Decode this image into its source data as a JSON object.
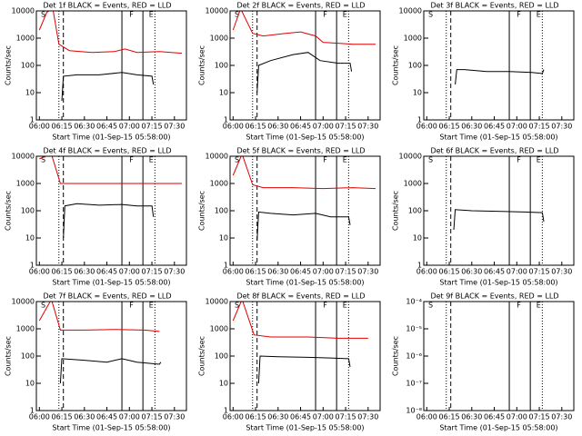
{
  "chart_data": [
    {
      "type": "line",
      "title": "Det 1f BLACK = Events, RED = LLD",
      "ylabel": "Counts/sec",
      "xlabel": "Start Time (01-Sep-15 05:58:00)",
      "log_y": true,
      "xlim": [
        "05:58",
        "07:38"
      ],
      "xticks": [
        "06:00",
        "06:15",
        "06:30",
        "06:45",
        "07:00",
        "07:15",
        "07:30"
      ],
      "ylim": [
        1,
        10000
      ],
      "yticks": [
        1,
        10,
        100,
        1000,
        10000
      ],
      "events": [
        {
          "label": "S",
          "x": "06:01"
        },
        {
          "label": "F",
          "x": "07:00"
        },
        {
          "label": "E",
          "x": "07:13"
        }
      ],
      "lines": [
        {
          "x": "06:13",
          "style": "dotted"
        },
        {
          "x": "06:16",
          "style": "dashed"
        },
        {
          "x": "06:55",
          "style": "solid"
        },
        {
          "x": "07:09",
          "style": "solid"
        },
        {
          "x": "07:17",
          "style": "dotted"
        }
      ],
      "series": [
        {
          "color": "#e00000",
          "x": [
            "06:00",
            "06:05",
            "06:09",
            "06:13",
            "06:20",
            "06:35",
            "06:50",
            "06:57",
            "07:05",
            "07:20",
            "07:35"
          ],
          "values": [
            2000,
            9000,
            12000,
            600,
            350,
            300,
            320,
            400,
            300,
            320,
            280
          ]
        },
        {
          "color": "#000000",
          "x": [
            "06:15",
            "06:16",
            "06:25",
            "06:40",
            "06:55",
            "07:05",
            "07:15",
            "07:16"
          ],
          "values": [
            5,
            40,
            45,
            45,
            55,
            45,
            40,
            20
          ]
        }
      ]
    },
    {
      "type": "line",
      "title": "Det 2f BLACK = Events, RED = LLD",
      "ylabel": "Counts/sec",
      "xlabel": "Start Time (01-Sep-15 05:58:00)",
      "log_y": true,
      "xlim": [
        "05:58",
        "07:38"
      ],
      "xticks": [
        "06:00",
        "06:15",
        "06:30",
        "06:45",
        "07:00",
        "07:15",
        "07:30"
      ],
      "ylim": [
        1,
        10000
      ],
      "yticks": [
        1,
        10,
        100,
        1000,
        10000
      ],
      "events": [
        {
          "label": "S",
          "x": "06:01"
        },
        {
          "label": "F",
          "x": "07:00"
        },
        {
          "label": "E",
          "x": "07:13"
        }
      ],
      "lines": [
        {
          "x": "06:13",
          "style": "dotted"
        },
        {
          "x": "06:16",
          "style": "dashed"
        },
        {
          "x": "06:55",
          "style": "solid"
        },
        {
          "x": "07:09",
          "style": "solid"
        },
        {
          "x": "07:17",
          "style": "dotted"
        }
      ],
      "series": [
        {
          "color": "#e00000",
          "x": [
            "06:00",
            "06:05",
            "06:13",
            "06:20",
            "06:35",
            "06:45",
            "06:55",
            "07:00",
            "07:20",
            "07:35"
          ],
          "values": [
            2000,
            12000,
            1500,
            1200,
            1500,
            1700,
            1200,
            700,
            600,
            600
          ]
        },
        {
          "color": "#000000",
          "x": [
            "06:16",
            "06:17",
            "06:25",
            "06:40",
            "06:50",
            "06:58",
            "07:10",
            "07:18",
            "07:19"
          ],
          "values": [
            10,
            100,
            150,
            250,
            300,
            150,
            120,
            120,
            60
          ]
        }
      ]
    },
    {
      "type": "line",
      "title": "Det 3f BLACK = Events, RED = LLD",
      "ylabel": "Counts/sec",
      "xlabel": "Start Time (01-Sep-15 05:58:00)",
      "log_y": true,
      "xlim": [
        "05:58",
        "07:38"
      ],
      "xticks": [
        "06:00",
        "06:15",
        "06:30",
        "06:45",
        "07:00",
        "07:15",
        "07:30"
      ],
      "ylim": [
        1,
        10000
      ],
      "yticks": [
        1,
        10,
        100,
        1000,
        10000
      ],
      "events": [
        {
          "label": "S",
          "x": "06:01"
        },
        {
          "label": "F",
          "x": "07:00"
        },
        {
          "label": "E",
          "x": "07:13"
        }
      ],
      "lines": [
        {
          "x": "06:13",
          "style": "dotted"
        },
        {
          "x": "06:16",
          "style": "dashed"
        },
        {
          "x": "06:55",
          "style": "solid"
        },
        {
          "x": "07:09",
          "style": "solid"
        },
        {
          "x": "07:17",
          "style": "dotted"
        }
      ],
      "series": [
        {
          "color": "#000000",
          "x": [
            "06:19",
            "06:20",
            "06:25",
            "06:40",
            "06:55",
            "07:10",
            "07:17",
            "07:18"
          ],
          "values": [
            20,
            70,
            70,
            60,
            60,
            55,
            50,
            70
          ]
        }
      ]
    },
    {
      "type": "line",
      "title": "Det 4f BLACK = Events, RED = LLD",
      "ylabel": "Counts/sec",
      "xlabel": "Start Time (01-Sep-15 05:58:00)",
      "log_y": true,
      "xlim": [
        "05:58",
        "07:38"
      ],
      "xticks": [
        "06:00",
        "06:15",
        "06:30",
        "06:45",
        "07:00",
        "07:15",
        "07:30"
      ],
      "ylim": [
        1,
        10000
      ],
      "yticks": [
        1,
        10,
        100,
        1000,
        10000
      ],
      "events": [
        {
          "label": "S",
          "x": "06:01"
        },
        {
          "label": "F",
          "x": "07:00"
        },
        {
          "label": "E",
          "x": "07:13"
        }
      ],
      "lines": [
        {
          "x": "06:13",
          "style": "dotted"
        },
        {
          "x": "06:16",
          "style": "dashed"
        },
        {
          "x": "06:55",
          "style": "solid"
        },
        {
          "x": "07:09",
          "style": "solid"
        },
        {
          "x": "07:17",
          "style": "dotted"
        }
      ],
      "series": [
        {
          "color": "#e00000",
          "x": [
            "06:00",
            "06:08",
            "06:14",
            "06:20",
            "07:35"
          ],
          "values": [
            8000,
            12000,
            1000,
            1000,
            1000
          ]
        },
        {
          "color": "#000000",
          "x": [
            "06:16",
            "06:17",
            "06:25",
            "06:40",
            "06:55",
            "07:05",
            "07:15",
            "07:16"
          ],
          "values": [
            10,
            150,
            180,
            160,
            170,
            150,
            150,
            60
          ]
        }
      ]
    },
    {
      "type": "line",
      "title": "Det 5f BLACK = Events, RED = LLD",
      "ylabel": "Counts/sec",
      "xlabel": "Start Time (01-Sep-15 05:58:00)",
      "log_y": true,
      "xlim": [
        "05:58",
        "07:38"
      ],
      "xticks": [
        "06:00",
        "06:15",
        "06:30",
        "06:45",
        "07:00",
        "07:15",
        "07:30"
      ],
      "ylim": [
        1,
        10000
      ],
      "yticks": [
        1,
        10,
        100,
        1000,
        10000
      ],
      "events": [
        {
          "label": "S",
          "x": "06:01"
        },
        {
          "label": "F",
          "x": "07:00"
        },
        {
          "label": "E",
          "x": "07:13"
        }
      ],
      "lines": [
        {
          "x": "06:13",
          "style": "dotted"
        },
        {
          "x": "06:16",
          "style": "dashed"
        },
        {
          "x": "06:55",
          "style": "solid"
        },
        {
          "x": "07:09",
          "style": "solid"
        },
        {
          "x": "07:17",
          "style": "dotted"
        }
      ],
      "series": [
        {
          "color": "#e00000",
          "x": [
            "06:00",
            "06:06",
            "06:13",
            "06:20",
            "06:40",
            "07:00",
            "07:20",
            "07:35"
          ],
          "values": [
            2000,
            12000,
            900,
            700,
            700,
            650,
            700,
            650
          ]
        },
        {
          "color": "#000000",
          "x": [
            "06:16",
            "06:17",
            "06:25",
            "06:40",
            "06:55",
            "07:05",
            "07:17",
            "07:18"
          ],
          "values": [
            8,
            90,
            80,
            70,
            80,
            60,
            60,
            30
          ]
        }
      ]
    },
    {
      "type": "line",
      "title": "Det 6f BLACK = Events, RED = LLD",
      "ylabel": "Counts/sec",
      "xlabel": "Start Time (01-Sep-15 05:58:00)",
      "log_y": true,
      "xlim": [
        "05:58",
        "07:38"
      ],
      "xticks": [
        "06:00",
        "06:15",
        "06:30",
        "06:45",
        "07:00",
        "07:15",
        "07:30"
      ],
      "ylim": [
        1,
        10000
      ],
      "yticks": [
        1,
        10,
        100,
        1000,
        10000
      ],
      "events": [
        {
          "label": "S",
          "x": "06:01"
        },
        {
          "label": "F",
          "x": "07:00"
        },
        {
          "label": "E",
          "x": "07:13"
        }
      ],
      "lines": [
        {
          "x": "06:13",
          "style": "dotted"
        },
        {
          "x": "06:16",
          "style": "dashed"
        },
        {
          "x": "06:55",
          "style": "solid"
        },
        {
          "x": "07:09",
          "style": "solid"
        },
        {
          "x": "07:17",
          "style": "dotted"
        }
      ],
      "series": [
        {
          "color": "#000000",
          "x": [
            "06:18",
            "06:19",
            "06:30",
            "06:50",
            "07:05",
            "07:17",
            "07:18"
          ],
          "values": [
            20,
            110,
            100,
            95,
            90,
            85,
            40
          ]
        }
      ]
    },
    {
      "type": "line",
      "title": "Det 7f BLACK = Events, RED = LLD",
      "ylabel": "Counts/sec",
      "xlabel": "Start Time (01-Sep-15 05:58:00)",
      "log_y": true,
      "xlim": [
        "05:58",
        "07:38"
      ],
      "xticks": [
        "06:00",
        "06:15",
        "06:30",
        "06:45",
        "07:00",
        "07:15",
        "07:30"
      ],
      "ylim": [
        1,
        10000
      ],
      "yticks": [
        1,
        10,
        100,
        1000,
        10000
      ],
      "events": [
        {
          "label": "S",
          "x": "06:01"
        },
        {
          "label": "F",
          "x": "07:00"
        },
        {
          "label": "E",
          "x": "07:13"
        }
      ],
      "lines": [
        {
          "x": "06:13",
          "style": "dotted"
        },
        {
          "x": "06:16",
          "style": "dashed"
        },
        {
          "x": "06:55",
          "style": "solid"
        },
        {
          "x": "07:09",
          "style": "solid"
        },
        {
          "x": "07:17",
          "style": "dotted"
        }
      ],
      "series": [
        {
          "color": "#e00000",
          "x": [
            "06:00",
            "06:08",
            "06:14",
            "06:30",
            "06:50",
            "07:10",
            "07:20"
          ],
          "values": [
            2000,
            12000,
            900,
            900,
            950,
            900,
            800
          ]
        },
        {
          "color": "#000000",
          "x": [
            "06:14",
            "06:15",
            "06:30",
            "06:45",
            "06:55",
            "07:05",
            "07:20",
            "07:21"
          ],
          "values": [
            10,
            80,
            70,
            60,
            80,
            60,
            50,
            60
          ]
        }
      ]
    },
    {
      "type": "line",
      "title": "Det 8f BLACK = Events, RED = LLD",
      "ylabel": "Counts/sec",
      "xlabel": "Start Time (01-Sep-15 05:58:00)",
      "log_y": true,
      "xlim": [
        "05:58",
        "07:38"
      ],
      "xticks": [
        "06:00",
        "06:15",
        "06:30",
        "06:45",
        "07:00",
        "07:15",
        "07:30"
      ],
      "ylim": [
        1,
        10000
      ],
      "yticks": [
        1,
        10,
        100,
        1000,
        10000
      ],
      "events": [
        {
          "label": "S",
          "x": "06:01"
        },
        {
          "label": "F",
          "x": "07:00"
        },
        {
          "label": "E",
          "x": "07:13"
        }
      ],
      "lines": [
        {
          "x": "06:13",
          "style": "dotted"
        },
        {
          "x": "06:16",
          "style": "dashed"
        },
        {
          "x": "06:55",
          "style": "solid"
        },
        {
          "x": "07:09",
          "style": "solid"
        },
        {
          "x": "07:17",
          "style": "dotted"
        }
      ],
      "series": [
        {
          "color": "#e00000",
          "x": [
            "06:00",
            "06:06",
            "06:14",
            "06:25",
            "06:50",
            "07:10",
            "07:30"
          ],
          "values": [
            2000,
            12000,
            600,
            500,
            500,
            450,
            450
          ]
        },
        {
          "color": "#000000",
          "x": [
            "06:17",
            "06:18",
            "06:30",
            "06:50",
            "07:05",
            "07:17",
            "07:18"
          ],
          "values": [
            10,
            100,
            95,
            90,
            85,
            80,
            40
          ]
        }
      ]
    },
    {
      "type": "line",
      "title": "Det 9f BLACK = Events, RED = LLD",
      "ylabel": "Counts/sec",
      "xlabel": "Start Time (01-Sep-15 05:58:00)",
      "log_y": true,
      "xlim": [
        "05:58",
        "07:38"
      ],
      "xticks": [
        "06:00",
        "06:15",
        "06:30",
        "06:45",
        "07:00",
        "07:15",
        "07:30"
      ],
      "ylim": [
        1e-08,
        0.0001
      ],
      "yticks": [
        {
          "value": 1e-08,
          "label": "10⁻⁸"
        },
        {
          "value": 1e-07,
          "label": "10⁻⁷"
        },
        {
          "value": 1e-06,
          "label": "10⁻⁶"
        },
        {
          "value": 1e-05,
          "label": "10⁻⁵"
        },
        {
          "value": 0.0001,
          "label": "10⁻⁴"
        }
      ],
      "events": [
        {
          "label": "S",
          "x": "06:01"
        },
        {
          "label": "F",
          "x": "07:00"
        },
        {
          "label": "E",
          "x": "07:13"
        }
      ],
      "lines": [
        {
          "x": "06:13",
          "style": "dotted"
        },
        {
          "x": "06:16",
          "style": "dashed"
        },
        {
          "x": "06:55",
          "style": "solid"
        },
        {
          "x": "07:09",
          "style": "solid"
        },
        {
          "x": "07:17",
          "style": "dotted"
        }
      ],
      "series": []
    }
  ]
}
